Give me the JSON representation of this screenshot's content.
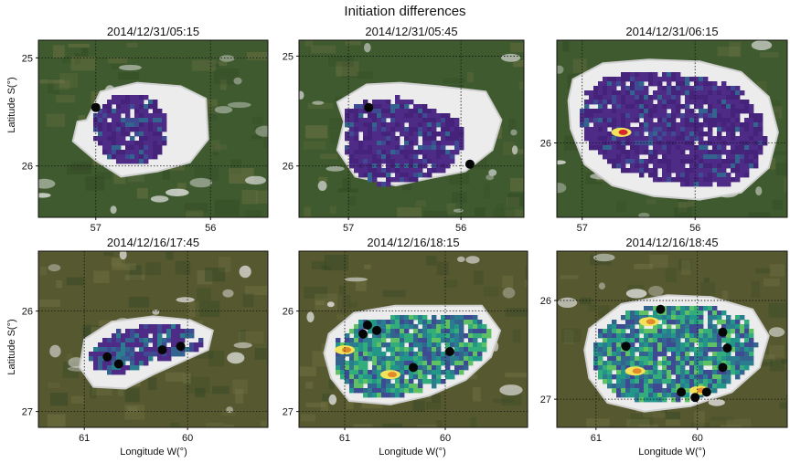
{
  "figure": {
    "title": "Initiation differences",
    "xlabel": "Longitude W(°)",
    "ylabel": "Latitude S(°)"
  },
  "chart_data": [
    {
      "type": "heatmap",
      "title": "2014/12/31/05:15",
      "xticks": [
        "57",
        "56"
      ],
      "yticks": [
        "25",
        "26"
      ],
      "xlabel": "",
      "ylabel": "Latitude S(°)",
      "background": "#3f5a2e",
      "cloud": [
        [
          0.21,
          0.45
        ],
        [
          0.27,
          0.29
        ],
        [
          0.43,
          0.24
        ],
        [
          0.62,
          0.26
        ],
        [
          0.73,
          0.33
        ],
        [
          0.74,
          0.56
        ],
        [
          0.66,
          0.69
        ],
        [
          0.52,
          0.74
        ],
        [
          0.36,
          0.77
        ],
        [
          0.25,
          0.68
        ],
        [
          0.15,
          0.57
        ],
        [
          0.17,
          0.46
        ]
      ],
      "echo": [
        [
          0.25,
          0.4
        ],
        [
          0.33,
          0.32
        ],
        [
          0.5,
          0.32
        ],
        [
          0.55,
          0.43
        ],
        [
          0.56,
          0.58
        ],
        [
          0.5,
          0.68
        ],
        [
          0.36,
          0.7
        ],
        [
          0.27,
          0.63
        ],
        [
          0.23,
          0.52
        ]
      ],
      "hotspots": [],
      "blackspots": [
        [
          0.25,
          0.38
        ]
      ]
    },
    {
      "type": "heatmap",
      "title": "2014/12/31/05:45",
      "xticks": [
        "57",
        "56"
      ],
      "yticks": [
        "25",
        "26"
      ],
      "xlabel": "",
      "ylabel": "",
      "background": "#3f5a2e",
      "cloud": [
        [
          0.17,
          0.35
        ],
        [
          0.3,
          0.25
        ],
        [
          0.45,
          0.24
        ],
        [
          0.62,
          0.26
        ],
        [
          0.83,
          0.29
        ],
        [
          0.9,
          0.45
        ],
        [
          0.86,
          0.62
        ],
        [
          0.74,
          0.74
        ],
        [
          0.58,
          0.78
        ],
        [
          0.43,
          0.82
        ],
        [
          0.25,
          0.77
        ],
        [
          0.17,
          0.62
        ],
        [
          0.2,
          0.46
        ]
      ],
      "echo": [
        [
          0.2,
          0.4
        ],
        [
          0.3,
          0.34
        ],
        [
          0.44,
          0.32
        ],
        [
          0.58,
          0.38
        ],
        [
          0.71,
          0.45
        ],
        [
          0.74,
          0.57
        ],
        [
          0.66,
          0.73
        ],
        [
          0.5,
          0.8
        ],
        [
          0.35,
          0.82
        ],
        [
          0.24,
          0.74
        ],
        [
          0.2,
          0.58
        ]
      ],
      "hotspots": [],
      "blackspots": [
        [
          0.31,
          0.38
        ],
        [
          0.76,
          0.7
        ]
      ]
    },
    {
      "type": "heatmap",
      "title": "2014/12/31/06:15",
      "xticks": [
        "57",
        "56"
      ],
      "yticks": [
        "26"
      ],
      "xlabel": "",
      "ylabel": "",
      "background": "#3f5a2e",
      "cloud": [
        [
          0.07,
          0.22
        ],
        [
          0.2,
          0.13
        ],
        [
          0.4,
          0.11
        ],
        [
          0.62,
          0.12
        ],
        [
          0.8,
          0.18
        ],
        [
          0.92,
          0.32
        ],
        [
          0.96,
          0.52
        ],
        [
          0.92,
          0.72
        ],
        [
          0.8,
          0.86
        ],
        [
          0.62,
          0.9
        ],
        [
          0.42,
          0.88
        ],
        [
          0.24,
          0.82
        ],
        [
          0.12,
          0.7
        ],
        [
          0.06,
          0.5
        ],
        [
          0.05,
          0.34
        ]
      ],
      "echo": [
        [
          0.12,
          0.3
        ],
        [
          0.22,
          0.2
        ],
        [
          0.4,
          0.18
        ],
        [
          0.6,
          0.2
        ],
        [
          0.78,
          0.26
        ],
        [
          0.88,
          0.4
        ],
        [
          0.91,
          0.58
        ],
        [
          0.85,
          0.75
        ],
        [
          0.72,
          0.83
        ],
        [
          0.56,
          0.82
        ],
        [
          0.4,
          0.78
        ],
        [
          0.25,
          0.72
        ],
        [
          0.14,
          0.6
        ],
        [
          0.1,
          0.46
        ]
      ],
      "hotspots": [
        [
          0.28,
          0.52
        ]
      ],
      "blackspots": []
    },
    {
      "type": "heatmap",
      "title": "2014/12/16/17:45",
      "xticks": [
        "61",
        "60"
      ],
      "yticks": [
        "26",
        "27"
      ],
      "xlabel": "Longitude W(°)",
      "ylabel": "Latitude S(°)",
      "background": "#56582f",
      "cloud": [
        [
          0.2,
          0.5
        ],
        [
          0.32,
          0.4
        ],
        [
          0.5,
          0.37
        ],
        [
          0.66,
          0.39
        ],
        [
          0.76,
          0.45
        ],
        [
          0.74,
          0.56
        ],
        [
          0.62,
          0.63
        ],
        [
          0.5,
          0.7
        ],
        [
          0.38,
          0.78
        ],
        [
          0.24,
          0.77
        ],
        [
          0.18,
          0.66
        ]
      ],
      "echo": [
        [
          0.24,
          0.55
        ],
        [
          0.34,
          0.45
        ],
        [
          0.5,
          0.41
        ],
        [
          0.64,
          0.43
        ],
        [
          0.72,
          0.49
        ],
        [
          0.7,
          0.56
        ],
        [
          0.6,
          0.6
        ],
        [
          0.47,
          0.64
        ],
        [
          0.36,
          0.7
        ],
        [
          0.26,
          0.68
        ],
        [
          0.22,
          0.61
        ]
      ],
      "hotspots": [],
      "blackspots": [
        [
          0.54,
          0.56
        ],
        [
          0.62,
          0.54
        ],
        [
          0.3,
          0.6
        ],
        [
          0.35,
          0.64
        ]
      ]
    },
    {
      "type": "heatmap",
      "title": "2014/12/16/18:15",
      "xticks": [
        "61",
        "60"
      ],
      "yticks": [
        "26",
        "27"
      ],
      "xlabel": "Longitude W(°)",
      "ylabel": "",
      "background": "#56582f",
      "cloud": [
        [
          0.13,
          0.47
        ],
        [
          0.24,
          0.35
        ],
        [
          0.42,
          0.31
        ],
        [
          0.6,
          0.31
        ],
        [
          0.8,
          0.31
        ],
        [
          0.88,
          0.45
        ],
        [
          0.84,
          0.6
        ],
        [
          0.73,
          0.73
        ],
        [
          0.57,
          0.82
        ],
        [
          0.4,
          0.87
        ],
        [
          0.22,
          0.85
        ],
        [
          0.14,
          0.72
        ],
        [
          0.11,
          0.58
        ]
      ],
      "echo": [
        [
          0.17,
          0.5
        ],
        [
          0.27,
          0.4
        ],
        [
          0.44,
          0.37
        ],
        [
          0.62,
          0.36
        ],
        [
          0.78,
          0.37
        ],
        [
          0.84,
          0.47
        ],
        [
          0.8,
          0.6
        ],
        [
          0.7,
          0.71
        ],
        [
          0.55,
          0.79
        ],
        [
          0.4,
          0.83
        ],
        [
          0.24,
          0.81
        ],
        [
          0.17,
          0.7
        ],
        [
          0.15,
          0.58
        ]
      ],
      "hotspots": [
        [
          0.2,
          0.56
        ],
        [
          0.4,
          0.7
        ]
      ],
      "blackspots": [
        [
          0.3,
          0.42
        ],
        [
          0.34,
          0.45
        ],
        [
          0.28,
          0.47
        ],
        [
          0.66,
          0.57
        ],
        [
          0.5,
          0.66
        ]
      ]
    },
    {
      "type": "heatmap",
      "title": "2014/12/16/18:45",
      "xticks": [
        "61",
        "60"
      ],
      "yticks": [
        "26",
        "27"
      ],
      "xlabel": "Longitude W(°)",
      "ylabel": "",
      "background": "#56582f",
      "cloud": [
        [
          0.14,
          0.44
        ],
        [
          0.28,
          0.3
        ],
        [
          0.48,
          0.25
        ],
        [
          0.67,
          0.26
        ],
        [
          0.85,
          0.33
        ],
        [
          0.92,
          0.48
        ],
        [
          0.88,
          0.66
        ],
        [
          0.76,
          0.8
        ],
        [
          0.58,
          0.88
        ],
        [
          0.38,
          0.91
        ],
        [
          0.22,
          0.86
        ],
        [
          0.14,
          0.72
        ],
        [
          0.12,
          0.56
        ]
      ],
      "echo": [
        [
          0.18,
          0.46
        ],
        [
          0.3,
          0.34
        ],
        [
          0.48,
          0.3
        ],
        [
          0.66,
          0.31
        ],
        [
          0.82,
          0.38
        ],
        [
          0.87,
          0.5
        ],
        [
          0.84,
          0.66
        ],
        [
          0.72,
          0.78
        ],
        [
          0.56,
          0.85
        ],
        [
          0.38,
          0.86
        ],
        [
          0.24,
          0.81
        ],
        [
          0.17,
          0.68
        ],
        [
          0.16,
          0.56
        ]
      ],
      "hotspots": [
        [
          0.4,
          0.4
        ],
        [
          0.34,
          0.68
        ],
        [
          0.62,
          0.79
        ]
      ],
      "blackspots": [
        [
          0.45,
          0.33
        ],
        [
          0.72,
          0.46
        ],
        [
          0.74,
          0.55
        ],
        [
          0.72,
          0.66
        ],
        [
          0.3,
          0.54
        ],
        [
          0.54,
          0.8
        ],
        [
          0.6,
          0.83
        ],
        [
          0.65,
          0.8
        ]
      ]
    }
  ]
}
